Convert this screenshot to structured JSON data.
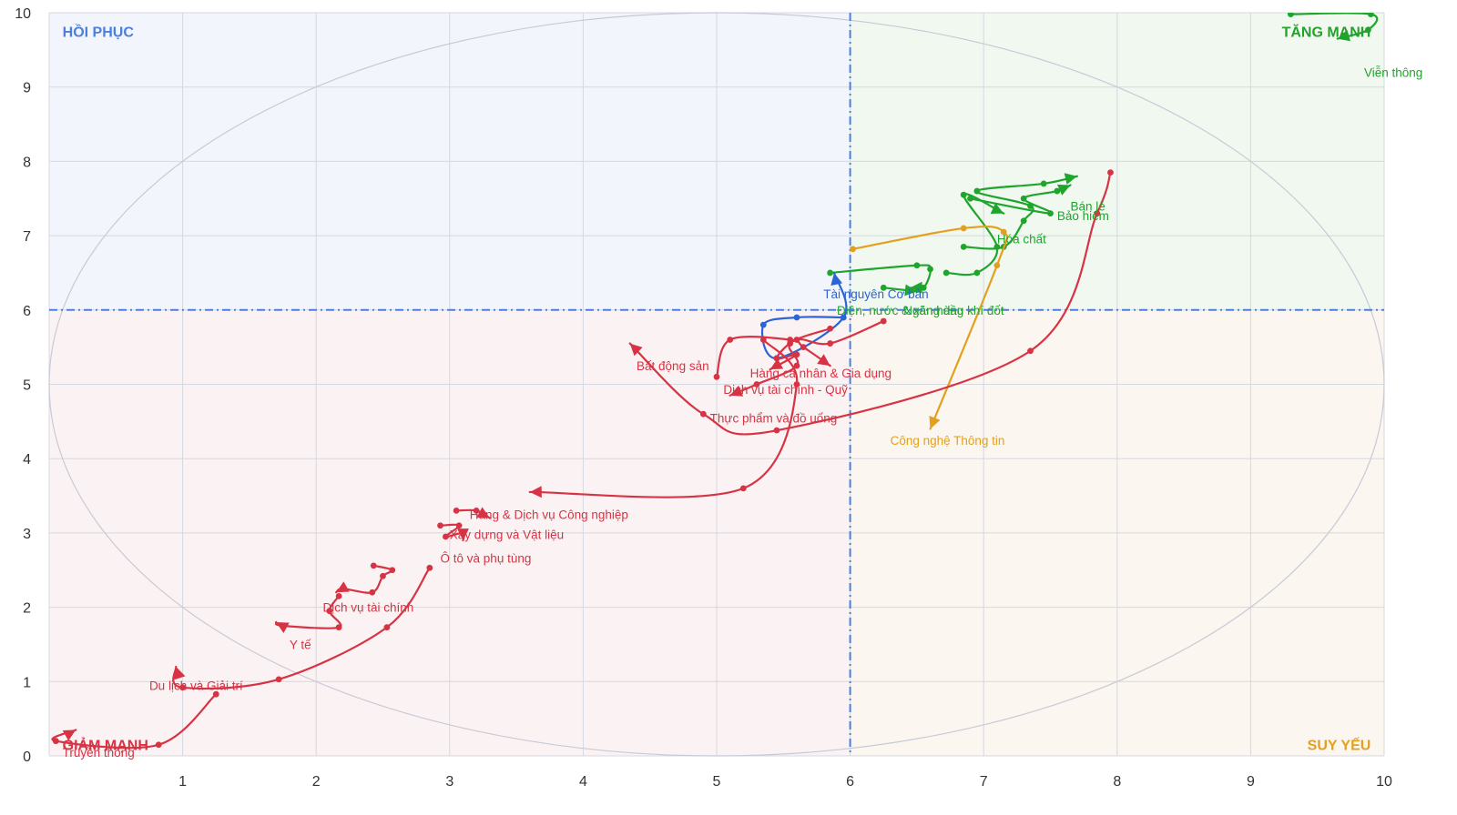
{
  "chart_data": {
    "type": "line",
    "xlim": [
      0,
      10
    ],
    "ylim": [
      0,
      10
    ],
    "x_ticks": [
      "1",
      "2",
      "3",
      "4",
      "5",
      "6",
      "7",
      "8",
      "9",
      "10"
    ],
    "y_ticks": [
      "0",
      "1",
      "2",
      "3",
      "4",
      "5",
      "6",
      "7",
      "8",
      "9",
      "10"
    ],
    "grid": true,
    "thresholds": {
      "x": 6,
      "y": 6
    },
    "quadrants": [
      {
        "label": "HỒI PHỤC",
        "x": 0.1,
        "y": 9.75,
        "color": "#4a7fe0",
        "anchor": "start"
      },
      {
        "label": "TĂNG MẠNH",
        "x": 9.9,
        "y": 9.75,
        "color": "#24a02c",
        "anchor": "end"
      },
      {
        "label": "GIẢM MẠNH",
        "x": 0.1,
        "y": 0.15,
        "color": "#d73344",
        "anchor": "start"
      },
      {
        "label": "SUY YẾU",
        "x": 9.9,
        "y": 0.15,
        "color": "#e3a020",
        "anchor": "end"
      }
    ],
    "colors": {
      "bg_recovery": "#f3f5fd",
      "bg_leading": "#f1f8ef",
      "bg_lagging": "#fbf3f3",
      "bg_weakening": "#fbf6ef",
      "axis_dash": "#4a7fe0",
      "grid": "#d5d8e0",
      "ellipse": "#c7cad6"
    },
    "series": [
      {
        "name": "Viễn thông",
        "color": "#1ea52c",
        "label_pos": [
          9.85,
          9.2
        ],
        "points": [
          [
            9.3,
            9.98
          ],
          [
            9.9,
            9.98
          ],
          [
            9.88,
            9.77
          ],
          [
            9.65,
            9.65
          ]
        ]
      },
      {
        "name": "Bán lẻ",
        "color": "#1ea52c",
        "label_pos": [
          7.65,
          7.4
        ],
        "points": [
          [
            6.85,
            6.85
          ],
          [
            7.15,
            6.85
          ],
          [
            7.3,
            7.2
          ],
          [
            7.35,
            7.4
          ],
          [
            6.95,
            7.6
          ],
          [
            7.45,
            7.7
          ],
          [
            7.7,
            7.8
          ]
        ]
      },
      {
        "name": "Bảo hiểm",
        "color": "#1ea52c",
        "label_pos": [
          7.55,
          7.27
        ],
        "points": [
          [
            6.9,
            7.5
          ],
          [
            7.5,
            7.3
          ],
          [
            7.3,
            7.5
          ],
          [
            7.55,
            7.6
          ],
          [
            7.65,
            7.68
          ]
        ]
      },
      {
        "name": "Hóa chất",
        "color": "#1ea52c",
        "label_pos": [
          7.1,
          6.96
        ],
        "points": [
          [
            6.72,
            6.5
          ],
          [
            6.95,
            6.5
          ],
          [
            7.1,
            6.85
          ],
          [
            6.85,
            7.55
          ],
          [
            7.15,
            7.3
          ]
        ]
      },
      {
        "name": "Ngân hàng",
        "color": "#1ea52c",
        "label_pos": [
          6.4,
          6.0
        ],
        "points": [
          [
            5.85,
            6.5
          ],
          [
            6.5,
            6.6
          ],
          [
            6.6,
            6.55
          ],
          [
            6.55,
            6.3
          ],
          [
            6.45,
            6.3
          ]
        ]
      },
      {
        "name": "Điện, nước & xăng dầu khí đốt",
        "color": "#1ea52c",
        "label_pos": [
          5.9,
          6.0
        ],
        "points": [
          [
            6.25,
            6.3
          ],
          [
            6.5,
            6.25
          ]
        ]
      },
      {
        "name": "Tài nguyên Cơ bản",
        "color": "#2a64d6",
        "label_pos": [
          5.8,
          6.22
        ],
        "points": [
          [
            5.95,
            5.9
          ],
          [
            5.6,
            5.9
          ],
          [
            5.35,
            5.8
          ],
          [
            5.45,
            5.35
          ],
          [
            5.95,
            5.9
          ],
          [
            5.88,
            6.5
          ]
        ]
      },
      {
        "name": "Công nghệ Thông tin",
        "color": "#e3a020",
        "label_pos": [
          6.3,
          4.25
        ],
        "points": [
          [
            6.02,
            6.82
          ],
          [
            6.85,
            7.1
          ],
          [
            7.15,
            7.05
          ],
          [
            7.1,
            6.6
          ],
          [
            6.6,
            4.4
          ]
        ]
      },
      {
        "name": "Hàng cá nhân & Gia dụng",
        "color": "#d73344",
        "label_pos": [
          5.25,
          5.15
        ],
        "points": [
          [
            6.25,
            5.85
          ],
          [
            5.85,
            5.55
          ],
          [
            5.6,
            5.6
          ],
          [
            5.45,
            5.35
          ],
          [
            5.6,
            5.4
          ],
          [
            5.4,
            5.2
          ]
        ]
      },
      {
        "name": "Dịch vụ tài chính - Quỹ",
        "color": "#d73344",
        "label_pos": [
          5.05,
          4.93
        ],
        "points": [
          [
            5.85,
            5.75
          ],
          [
            5.55,
            5.55
          ],
          [
            5.6,
            5.25
          ],
          [
            5.3,
            5.0
          ],
          [
            5.1,
            4.85
          ]
        ]
      },
      {
        "name": "Bất động sản",
        "color": "#d73344",
        "label_pos": [
          4.4,
          5.25
        ],
        "points": [
          [
            7.95,
            7.85
          ],
          [
            7.85,
            7.3
          ],
          [
            7.35,
            5.45
          ],
          [
            5.45,
            4.38
          ],
          [
            4.9,
            4.6
          ],
          [
            4.35,
            5.55
          ]
        ]
      },
      {
        "name": "Thực phẩm và đồ uống",
        "color": "#d73344",
        "label_pos": [
          4.95,
          4.55
        ],
        "points": [
          [
            5.0,
            5.1
          ],
          [
            5.1,
            5.6
          ],
          [
            5.55,
            5.6
          ],
          [
            5.65,
            5.5
          ],
          [
            5.85,
            5.25
          ]
        ]
      },
      {
        "name": "Hàng & Dịch vụ Công nghiệp",
        "color": "#d73344",
        "label_pos": [
          3.15,
          3.25
        ],
        "points": [
          [
            5.35,
            5.6
          ],
          [
            5.6,
            5.0
          ],
          [
            5.2,
            3.6
          ],
          [
            3.6,
            3.55
          ]
        ]
      },
      {
        "name": "Xây dựng và Vật liệu",
        "color": "#d73344",
        "label_pos": [
          3.0,
          2.98
        ],
        "points": [
          [
            3.05,
            3.3
          ],
          [
            3.2,
            3.3
          ],
          [
            3.3,
            3.2
          ]
        ]
      },
      {
        "name": "Ô tô và phụ tùng",
        "color": "#d73344",
        "label_pos": [
          2.93,
          2.66
        ],
        "points": [
          [
            2.93,
            3.1
          ],
          [
            3.07,
            3.1
          ],
          [
            2.97,
            2.95
          ],
          [
            3.1,
            3.0
          ],
          [
            3.1,
            2.9
          ]
        ]
      },
      {
        "name": "Dịch vụ tài chính",
        "color": "#d73344",
        "label_pos": [
          2.05,
          2.0
        ],
        "points": [
          [
            2.43,
            2.56
          ],
          [
            2.57,
            2.5
          ],
          [
            2.5,
            2.42
          ],
          [
            2.42,
            2.2
          ],
          [
            2.2,
            2.25
          ],
          [
            2.15,
            2.2
          ]
        ]
      },
      {
        "name": "Y tế",
        "color": "#d73344",
        "label_pos": [
          1.8,
          1.5
        ],
        "points": [
          [
            2.17,
            2.15
          ],
          [
            2.1,
            1.95
          ],
          [
            2.17,
            1.73
          ],
          [
            1.75,
            1.75
          ],
          [
            1.7,
            1.8
          ]
        ]
      },
      {
        "name": "Du lịch và Giải trí",
        "color": "#d73344",
        "label_pos": [
          0.75,
          0.95
        ],
        "points": [
          [
            2.85,
            2.53
          ],
          [
            2.53,
            1.73
          ],
          [
            1.72,
            1.03
          ],
          [
            1.0,
            0.92
          ],
          [
            0.95,
            1.2
          ]
        ]
      },
      {
        "name": "Truyền thông",
        "color": "#d73344",
        "label_pos": [
          0.1,
          0.05
        ],
        "points": [
          [
            1.25,
            0.83
          ],
          [
            0.82,
            0.15
          ],
          [
            0.05,
            0.2
          ],
          [
            0.2,
            0.35
          ]
        ]
      }
    ]
  }
}
